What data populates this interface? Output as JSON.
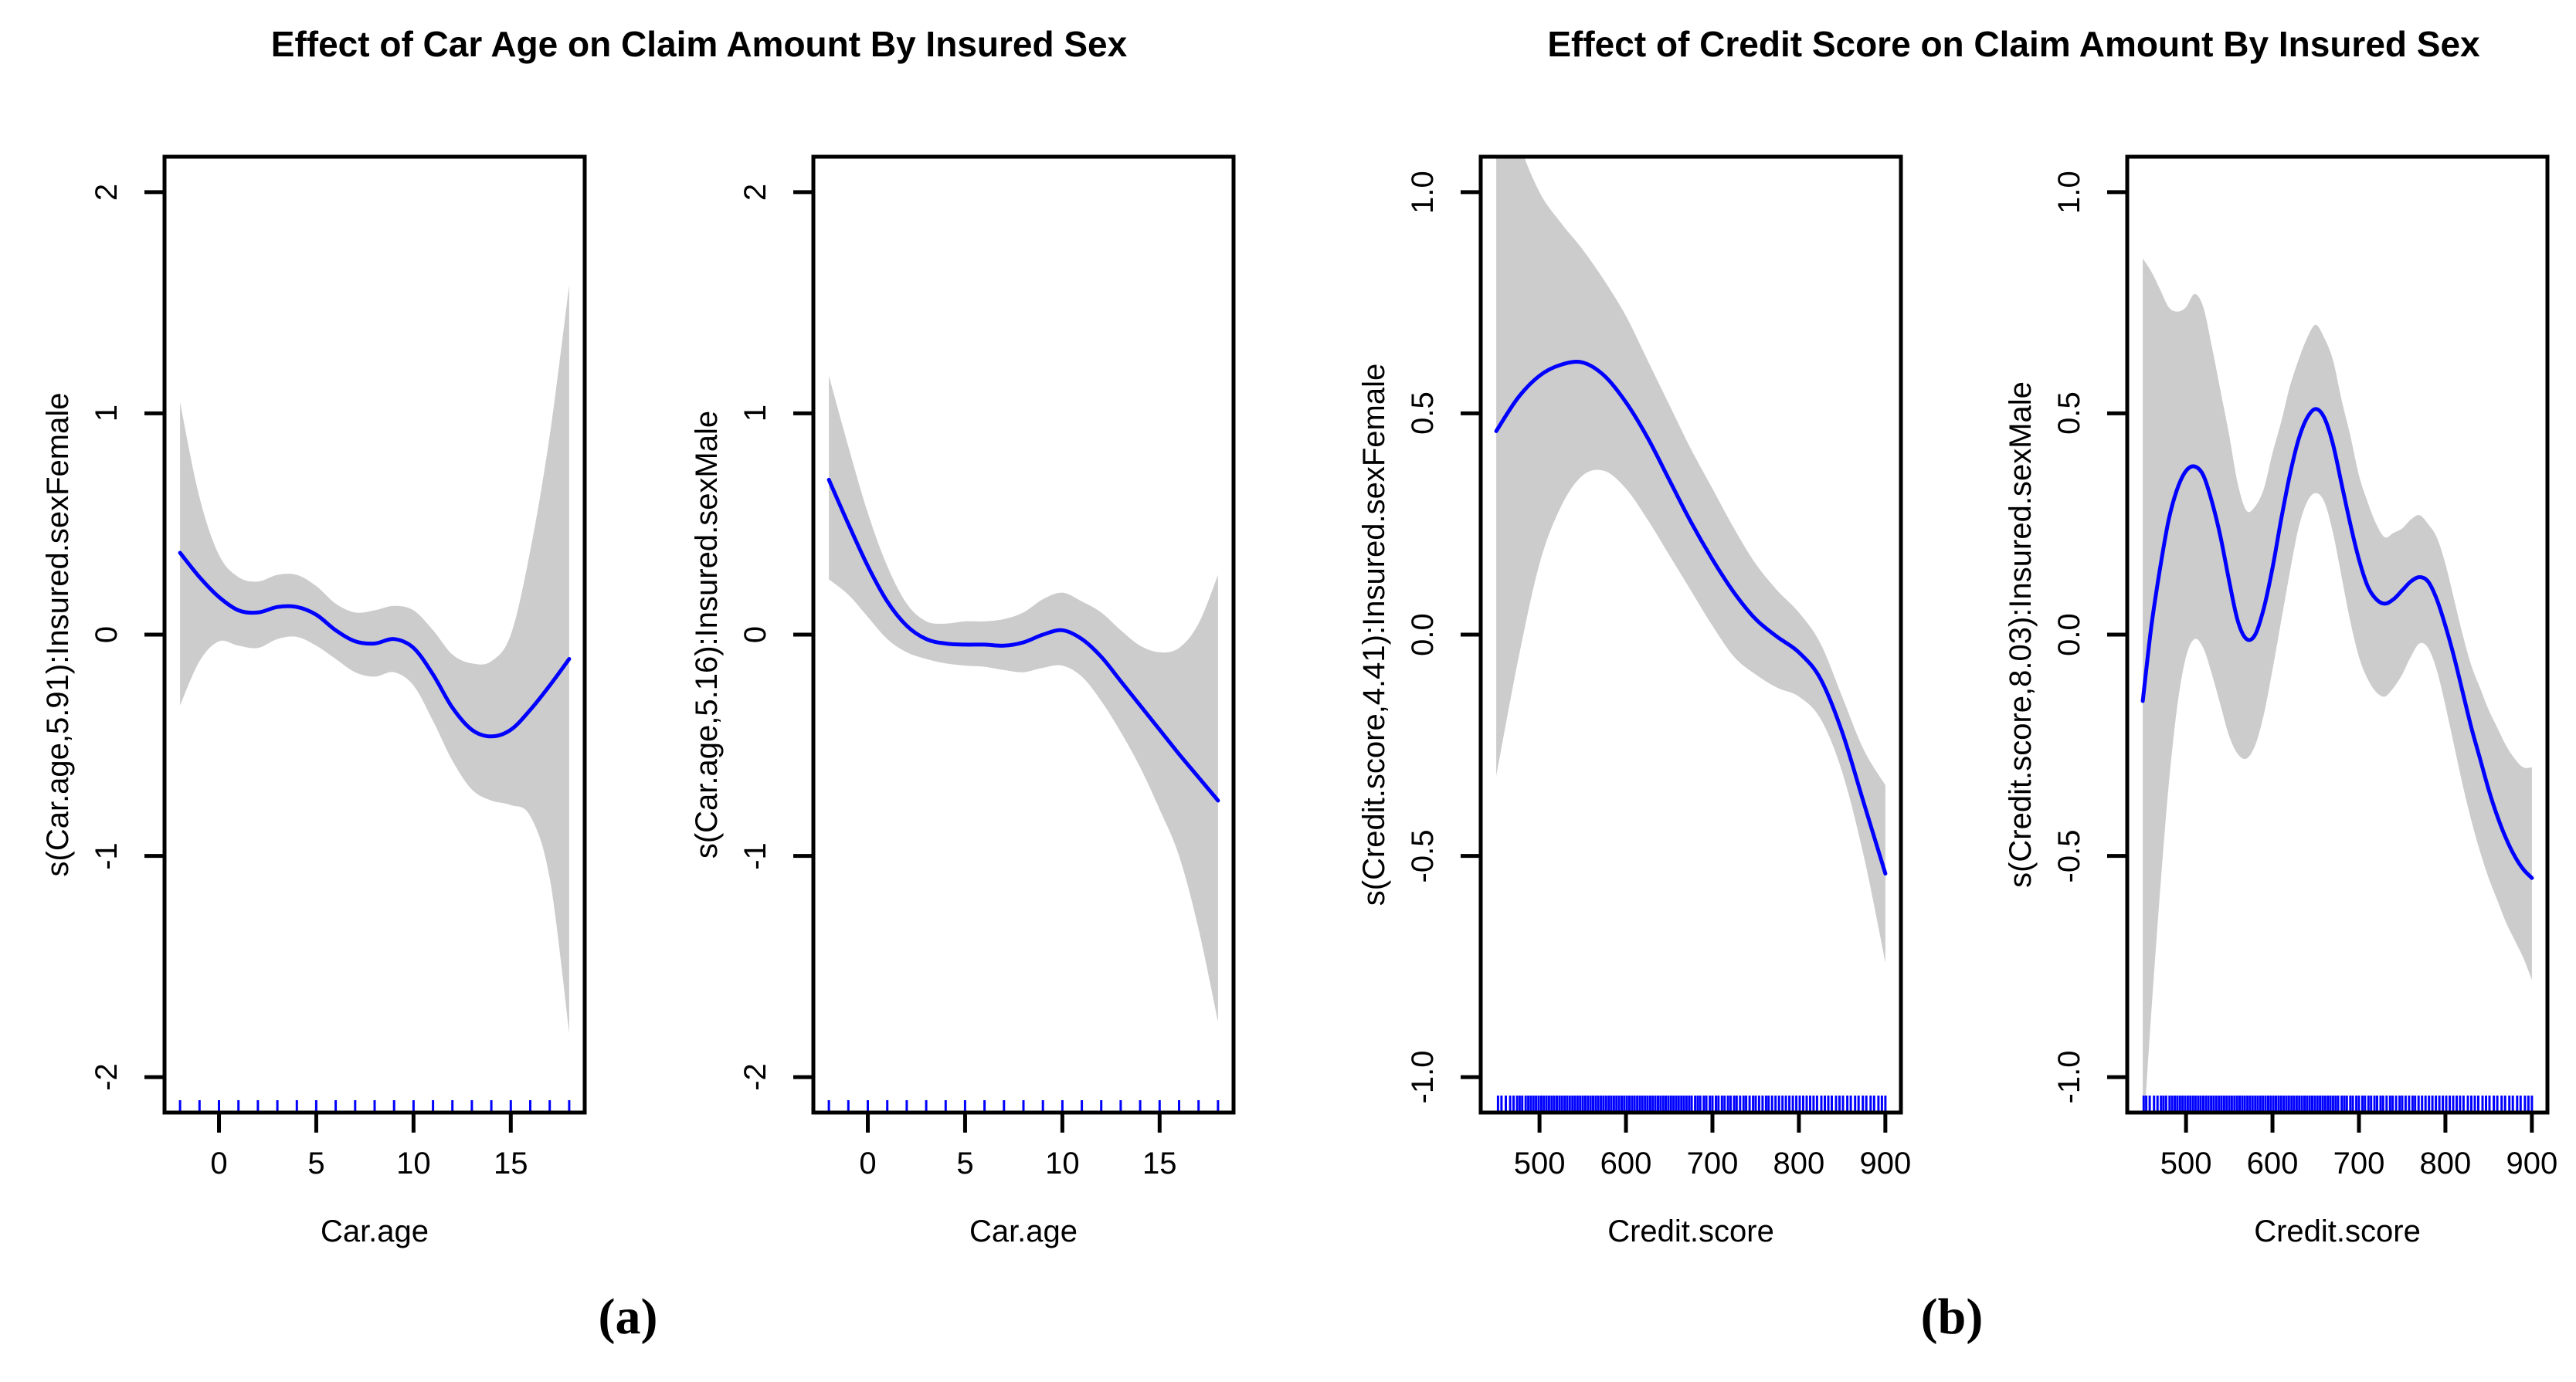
{
  "figure": {
    "background": "#FFFFFF",
    "groups": [
      {
        "title": "Effect of Car Age on Claim Amount By Insured Sex",
        "caption": "(a)"
      },
      {
        "title": "Effect of Credit Score on Claim Amount By Insured Sex",
        "caption": "(b)"
      }
    ]
  },
  "colors": {
    "curve": "#0000FF",
    "band": "#CCCCCC",
    "axis": "#000000",
    "rug": "#0000FF"
  },
  "chart_data": [
    {
      "type": "line",
      "group": "a",
      "xlabel": "Car.age",
      "ylabel": "s(Car.age,5.91):Insured.sexFemale",
      "xlim": [
        -2.8,
        18.8
      ],
      "ylim": [
        -2.16,
        2.16
      ],
      "x_tick_values": [
        0,
        5,
        10,
        15
      ],
      "x_tick_labels": [
        "0",
        "5",
        "10",
        "15"
      ],
      "y_tick_values": [
        2,
        1,
        0,
        -1,
        -2
      ],
      "y_tick_labels": [
        "2",
        "1",
        "0",
        "-1",
        "-2"
      ],
      "grid": false,
      "legend": null,
      "curve": {
        "x": [
          -2,
          -1,
          0,
          1,
          2,
          3,
          4,
          5,
          6,
          7,
          8,
          9,
          10,
          11,
          12,
          13,
          14,
          15,
          16,
          17,
          18
        ],
        "y": [
          0.37,
          0.26,
          0.17,
          0.11,
          0.1,
          0.125,
          0.125,
          0.09,
          0.02,
          -0.03,
          -0.04,
          -0.02,
          -0.06,
          -0.18,
          -0.33,
          -0.43,
          -0.46,
          -0.43,
          -0.34,
          -0.23,
          -0.11
        ]
      },
      "band": {
        "upper": [
          1.05,
          0.62,
          0.36,
          0.26,
          0.24,
          0.27,
          0.27,
          0.22,
          0.14,
          0.1,
          0.11,
          0.13,
          0.11,
          0.02,
          -0.09,
          -0.13,
          -0.12,
          0.0,
          0.38,
          0.9,
          1.58
        ],
        "lower": [
          -0.32,
          -0.12,
          -0.03,
          -0.05,
          -0.06,
          -0.02,
          -0.01,
          -0.05,
          -0.11,
          -0.17,
          -0.19,
          -0.17,
          -0.23,
          -0.39,
          -0.57,
          -0.7,
          -0.75,
          -0.77,
          -0.82,
          -1.1,
          -1.8
        ]
      },
      "rug": [
        -2,
        -1,
        0,
        1,
        2,
        3,
        4,
        5,
        6,
        7,
        8,
        9,
        10,
        11,
        12,
        13,
        14,
        15,
        16,
        17,
        18
      ],
      "rug_height": 16
    },
    {
      "type": "line",
      "group": "a",
      "xlabel": "Car.age",
      "ylabel": "s(Car.age,5.16):Insured.sexMale",
      "xlim": [
        -2.8,
        18.8
      ],
      "ylim": [
        -2.16,
        2.16
      ],
      "x_tick_values": [
        0,
        5,
        10,
        15
      ],
      "x_tick_labels": [
        "0",
        "5",
        "10",
        "15"
      ],
      "y_tick_values": [
        2,
        1,
        0,
        -1,
        -2
      ],
      "y_tick_labels": [
        "2",
        "1",
        "0",
        "-1",
        "-2"
      ],
      "grid": false,
      "legend": null,
      "curve": {
        "x": [
          -2,
          -1,
          0,
          1,
          2,
          3,
          4,
          5,
          6,
          7,
          8,
          9,
          10,
          11,
          12,
          13,
          14,
          15,
          16,
          17,
          18
        ],
        "y": [
          0.7,
          0.5,
          0.31,
          0.15,
          0.04,
          -0.02,
          -0.04,
          -0.045,
          -0.045,
          -0.05,
          -0.035,
          0.0,
          0.02,
          -0.02,
          -0.1,
          -0.21,
          -0.32,
          -0.43,
          -0.54,
          -0.645,
          -0.75
        ]
      },
      "band": {
        "upper": [
          1.17,
          0.85,
          0.55,
          0.31,
          0.14,
          0.06,
          0.05,
          0.06,
          0.06,
          0.07,
          0.1,
          0.16,
          0.19,
          0.15,
          0.1,
          0.02,
          -0.05,
          -0.08,
          -0.06,
          0.05,
          0.27
        ],
        "lower": [
          0.25,
          0.18,
          0.08,
          -0.02,
          -0.08,
          -0.11,
          -0.13,
          -0.14,
          -0.145,
          -0.16,
          -0.17,
          -0.15,
          -0.14,
          -0.19,
          -0.3,
          -0.44,
          -0.6,
          -0.79,
          -1.0,
          -1.33,
          -1.75
        ]
      },
      "rug": [
        -2,
        -1,
        0,
        1,
        2,
        3,
        4,
        5,
        6,
        7,
        8,
        9,
        10,
        11,
        12,
        13,
        14,
        15,
        16,
        17,
        18
      ],
      "rug_height": 16
    },
    {
      "type": "line",
      "group": "b",
      "xlabel": "Credit.score",
      "ylabel": "s(Credit.score,4.41):Insured.sexFemale",
      "xlim": [
        432,
        918
      ],
      "ylim": [
        -1.08,
        1.08
      ],
      "x_tick_values": [
        500,
        600,
        700,
        800,
        900
      ],
      "x_tick_labels": [
        "500",
        "600",
        "700",
        "800",
        "900"
      ],
      "y_tick_values": [
        1.0,
        0.5,
        0.0,
        -0.5,
        -1.0
      ],
      "y_tick_labels": [
        "1.0",
        "0.5",
        "0.0",
        "-0.5",
        "-1.0"
      ],
      "grid": false,
      "legend": null,
      "curve": {
        "x": [
          450,
          475,
          500,
          525,
          550,
          575,
          600,
          625,
          650,
          675,
          700,
          725,
          750,
          775,
          800,
          825,
          850,
          875,
          900
        ],
        "y": [
          0.46,
          0.535,
          0.585,
          0.61,
          0.615,
          0.585,
          0.525,
          0.445,
          0.35,
          0.255,
          0.17,
          0.095,
          0.035,
          -0.005,
          -0.04,
          -0.1,
          -0.22,
          -0.38,
          -0.54
        ]
      },
      "band": {
        "upper": [
          1.3,
          1.12,
          1.0,
          0.93,
          0.87,
          0.8,
          0.72,
          0.62,
          0.52,
          0.42,
          0.33,
          0.24,
          0.16,
          0.1,
          0.05,
          -0.02,
          -0.14,
          -0.26,
          -0.34
        ],
        "lower": [
          -0.32,
          -0.06,
          0.16,
          0.29,
          0.36,
          0.37,
          0.33,
          0.26,
          0.18,
          0.1,
          0.02,
          -0.05,
          -0.09,
          -0.12,
          -0.14,
          -0.19,
          -0.31,
          -0.5,
          -0.74
        ]
      },
      "rug": [
        452,
        456,
        461,
        466,
        470,
        474,
        477,
        480,
        484,
        487,
        490,
        493,
        496,
        499,
        502,
        505,
        508,
        511,
        514,
        517,
        520,
        523,
        526,
        529,
        532,
        535,
        538,
        541,
        544,
        547,
        550,
        553,
        556,
        559,
        562,
        565,
        568,
        571,
        574,
        577,
        580,
        583,
        586,
        589,
        592,
        595,
        598,
        601,
        604,
        607,
        610,
        613,
        616,
        619,
        622,
        625,
        628,
        631,
        634,
        637,
        640,
        643,
        646,
        649,
        652,
        655,
        658,
        661,
        664,
        667,
        670,
        673,
        676,
        680,
        683,
        686,
        690,
        693,
        697,
        700,
        704,
        707,
        711,
        714,
        718,
        721,
        725,
        728,
        732,
        736,
        739,
        743,
        747,
        750,
        754,
        758,
        762,
        765,
        769,
        773,
        777,
        781,
        785,
        789,
        793,
        797,
        801,
        805,
        809,
        813,
        817,
        821,
        826,
        830,
        834,
        838,
        843,
        847,
        851,
        856,
        860,
        865,
        869,
        874,
        878,
        883,
        887,
        892,
        896,
        900
      ],
      "rug_height": 22
    },
    {
      "type": "line",
      "group": "b",
      "xlabel": "Credit.score",
      "ylabel": "s(Credit.score,8.03):Insured.sexMale",
      "xlim": [
        432,
        918
      ],
      "ylim": [
        -1.08,
        1.08
      ],
      "x_tick_values": [
        500,
        600,
        700,
        800,
        900
      ],
      "x_tick_labels": [
        "500",
        "600",
        "700",
        "800",
        "900"
      ],
      "y_tick_values": [
        1.0,
        0.5,
        0.0,
        -0.5,
        -1.0
      ],
      "y_tick_labels": [
        "1.0",
        "0.5",
        "0.0",
        "-0.5",
        "-1.0"
      ],
      "grid": false,
      "legend": null,
      "curve": {
        "x": [
          450,
          460,
          470,
          480,
          490,
          500,
          510,
          520,
          530,
          540,
          550,
          560,
          570,
          580,
          590,
          600,
          610,
          620,
          630,
          640,
          650,
          660,
          670,
          680,
          690,
          700,
          710,
          720,
          730,
          740,
          750,
          760,
          770,
          780,
          790,
          800,
          810,
          820,
          830,
          840,
          850,
          860,
          870,
          880,
          890,
          900
        ],
        "y": [
          -0.15,
          0.02,
          0.15,
          0.26,
          0.33,
          0.37,
          0.38,
          0.36,
          0.3,
          0.22,
          0.12,
          0.03,
          -0.01,
          0.0,
          0.06,
          0.15,
          0.26,
          0.36,
          0.44,
          0.49,
          0.51,
          0.49,
          0.43,
          0.34,
          0.25,
          0.17,
          0.11,
          0.08,
          0.07,
          0.08,
          0.1,
          0.12,
          0.13,
          0.12,
          0.08,
          0.02,
          -0.05,
          -0.13,
          -0.21,
          -0.28,
          -0.35,
          -0.41,
          -0.46,
          -0.5,
          -0.53,
          -0.55
        ]
      },
      "band": {
        "upper": [
          0.85,
          0.82,
          0.78,
          0.74,
          0.73,
          0.74,
          0.77,
          0.74,
          0.65,
          0.55,
          0.45,
          0.34,
          0.28,
          0.29,
          0.33,
          0.41,
          0.48,
          0.56,
          0.62,
          0.67,
          0.7,
          0.67,
          0.62,
          0.53,
          0.45,
          0.36,
          0.3,
          0.25,
          0.22,
          0.23,
          0.24,
          0.26,
          0.27,
          0.25,
          0.22,
          0.16,
          0.08,
          0.0,
          -0.07,
          -0.12,
          -0.17,
          -0.21,
          -0.25,
          -0.28,
          -0.3,
          -0.3
        ],
        "lower": [
          -1.15,
          -0.85,
          -0.58,
          -0.34,
          -0.16,
          -0.05,
          -0.01,
          -0.03,
          -0.09,
          -0.16,
          -0.23,
          -0.27,
          -0.28,
          -0.25,
          -0.18,
          -0.08,
          0.03,
          0.14,
          0.24,
          0.3,
          0.32,
          0.3,
          0.23,
          0.13,
          0.03,
          -0.05,
          -0.1,
          -0.13,
          -0.14,
          -0.12,
          -0.09,
          -0.05,
          -0.02,
          -0.03,
          -0.08,
          -0.16,
          -0.25,
          -0.34,
          -0.42,
          -0.49,
          -0.55,
          -0.6,
          -0.65,
          -0.69,
          -0.73,
          -0.78
        ]
      },
      "rug": [
        451,
        454,
        458,
        463,
        467,
        471,
        474,
        477,
        481,
        484,
        487,
        490,
        493,
        496,
        499,
        502,
        505,
        508,
        511,
        514,
        517,
        520,
        523,
        526,
        529,
        532,
        535,
        538,
        541,
        544,
        547,
        550,
        553,
        556,
        559,
        562,
        565,
        568,
        571,
        574,
        577,
        580,
        583,
        586,
        589,
        592,
        595,
        598,
        601,
        604,
        607,
        610,
        613,
        616,
        619,
        622,
        625,
        628,
        631,
        634,
        637,
        640,
        643,
        646,
        649,
        652,
        655,
        658,
        661,
        664,
        667,
        670,
        673,
        676,
        680,
        683,
        686,
        690,
        693,
        697,
        700,
        704,
        707,
        711,
        714,
        718,
        721,
        725,
        728,
        732,
        736,
        739,
        743,
        747,
        750,
        754,
        758,
        762,
        765,
        769,
        773,
        777,
        781,
        785,
        789,
        793,
        797,
        801,
        805,
        809,
        813,
        817,
        821,
        826,
        830,
        834,
        838,
        843,
        847,
        851,
        856,
        860,
        865,
        869,
        874,
        878,
        883,
        887,
        892,
        896,
        900
      ],
      "rug_height": 22
    }
  ]
}
